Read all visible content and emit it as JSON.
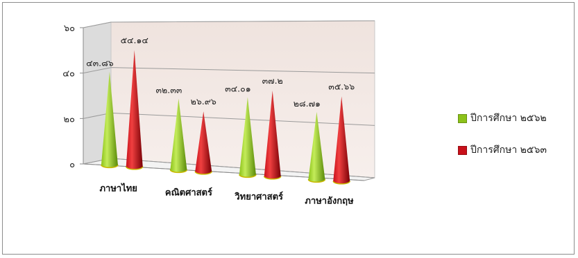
{
  "chart_data": {
    "type": "bar",
    "style": "3d-cone",
    "categories": [
      "ภาษาไทย",
      "คณิตศาสตร์",
      "วิทยาศาสตร์",
      "ภาษาอังกฤษ"
    ],
    "series": [
      {
        "name": "ปีการศึกษา ๒๕๖๒",
        "color": "#8cc21a",
        "values": [
          43.86,
          32.33,
          34.01,
          28.71
        ],
        "labels": [
          "๔๓.๘๖",
          "๓๒.๓๓",
          "๓๔.๐๑",
          "๒๘.๗๑"
        ]
      },
      {
        "name": "ปีการศึกษา ๒๕๖๓",
        "color": "#c8101a",
        "values": [
          54.14,
          26.96,
          37.2,
          35.66
        ],
        "labels": [
          "๕๔.๑๔",
          "๒๖.๙๖",
          "๓๗.๒",
          "๓๕.๖๖"
        ]
      }
    ],
    "yticks": [
      {
        "value": 0,
        "label": "๐"
      },
      {
        "value": 20,
        "label": "๒๐"
      },
      {
        "value": 40,
        "label": "๔๐"
      },
      {
        "value": 60,
        "label": "๖๐"
      }
    ],
    "ylim": [
      0,
      60
    ],
    "grid": true,
    "legend_position": "right"
  }
}
